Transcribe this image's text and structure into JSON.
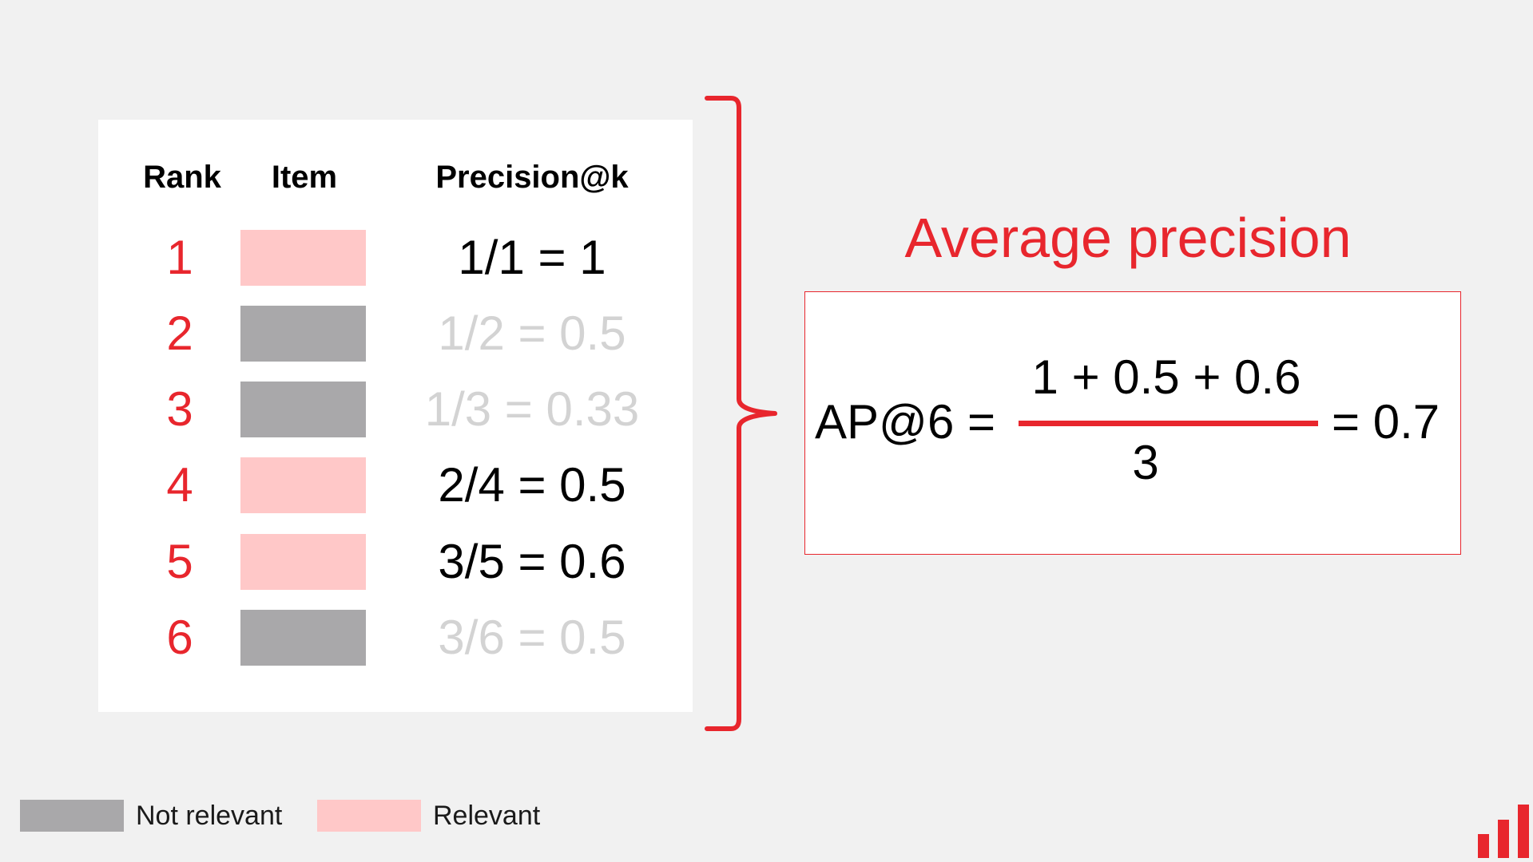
{
  "table": {
    "headers": {
      "rank": "Rank",
      "item": "Item",
      "precision": "Precision@k"
    },
    "rows": [
      {
        "rank": "1",
        "relevance": "relevant",
        "precision": "1/1 = 1"
      },
      {
        "rank": "2",
        "relevance": "not_relevant",
        "precision": "1/2 = 0.5"
      },
      {
        "rank": "3",
        "relevance": "not_relevant",
        "precision": "1/3 = 0.33"
      },
      {
        "rank": "4",
        "relevance": "relevant",
        "precision": "2/4 = 0.5"
      },
      {
        "rank": "5",
        "relevance": "relevant",
        "precision": "3/5 = 0.6"
      },
      {
        "rank": "6",
        "relevance": "not_relevant",
        "precision": "3/6 = 0.5"
      }
    ]
  },
  "average_precision": {
    "title": "Average precision",
    "lhs": "AP@6 =",
    "numerator": "1 + 0.5 + 0.6",
    "denominator": "3",
    "result": "= 0.7"
  },
  "legend": {
    "not_relevant": "Not relevant",
    "relevant": "Relevant"
  },
  "colors": {
    "accent_red": "#e8262d",
    "relevant": "#ffc8c8",
    "not_relevant": "#a9a8aa",
    "faded_text": "#d3d3d3",
    "background": "#f1f1f1"
  },
  "icons": {
    "logo": "bar-chart-logo-icon",
    "brace": "right-curly-brace-icon"
  }
}
